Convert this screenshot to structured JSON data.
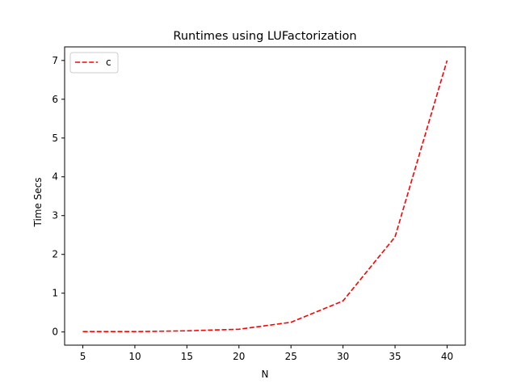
{
  "chart_data": {
    "type": "line",
    "title": "Runtimes using LUFactorization",
    "xlabel": "N",
    "ylabel": "Time Secs",
    "x": [
      5,
      10,
      15,
      20,
      25,
      30,
      35,
      40
    ],
    "series": [
      {
        "name": "c",
        "values": [
          0.01,
          0.01,
          0.03,
          0.07,
          0.25,
          0.8,
          2.45,
          7.0
        ],
        "color": "#ff0000",
        "line_style": "dashed"
      }
    ],
    "xlim": [
      3.25,
      41.75
    ],
    "ylim": [
      -0.34,
      7.35
    ],
    "xticks": [
      5,
      10,
      15,
      20,
      25,
      30,
      35,
      40
    ],
    "yticks": [
      0,
      1,
      2,
      3,
      4,
      5,
      6,
      7
    ],
    "grid": false,
    "legend_position": "top-left"
  }
}
